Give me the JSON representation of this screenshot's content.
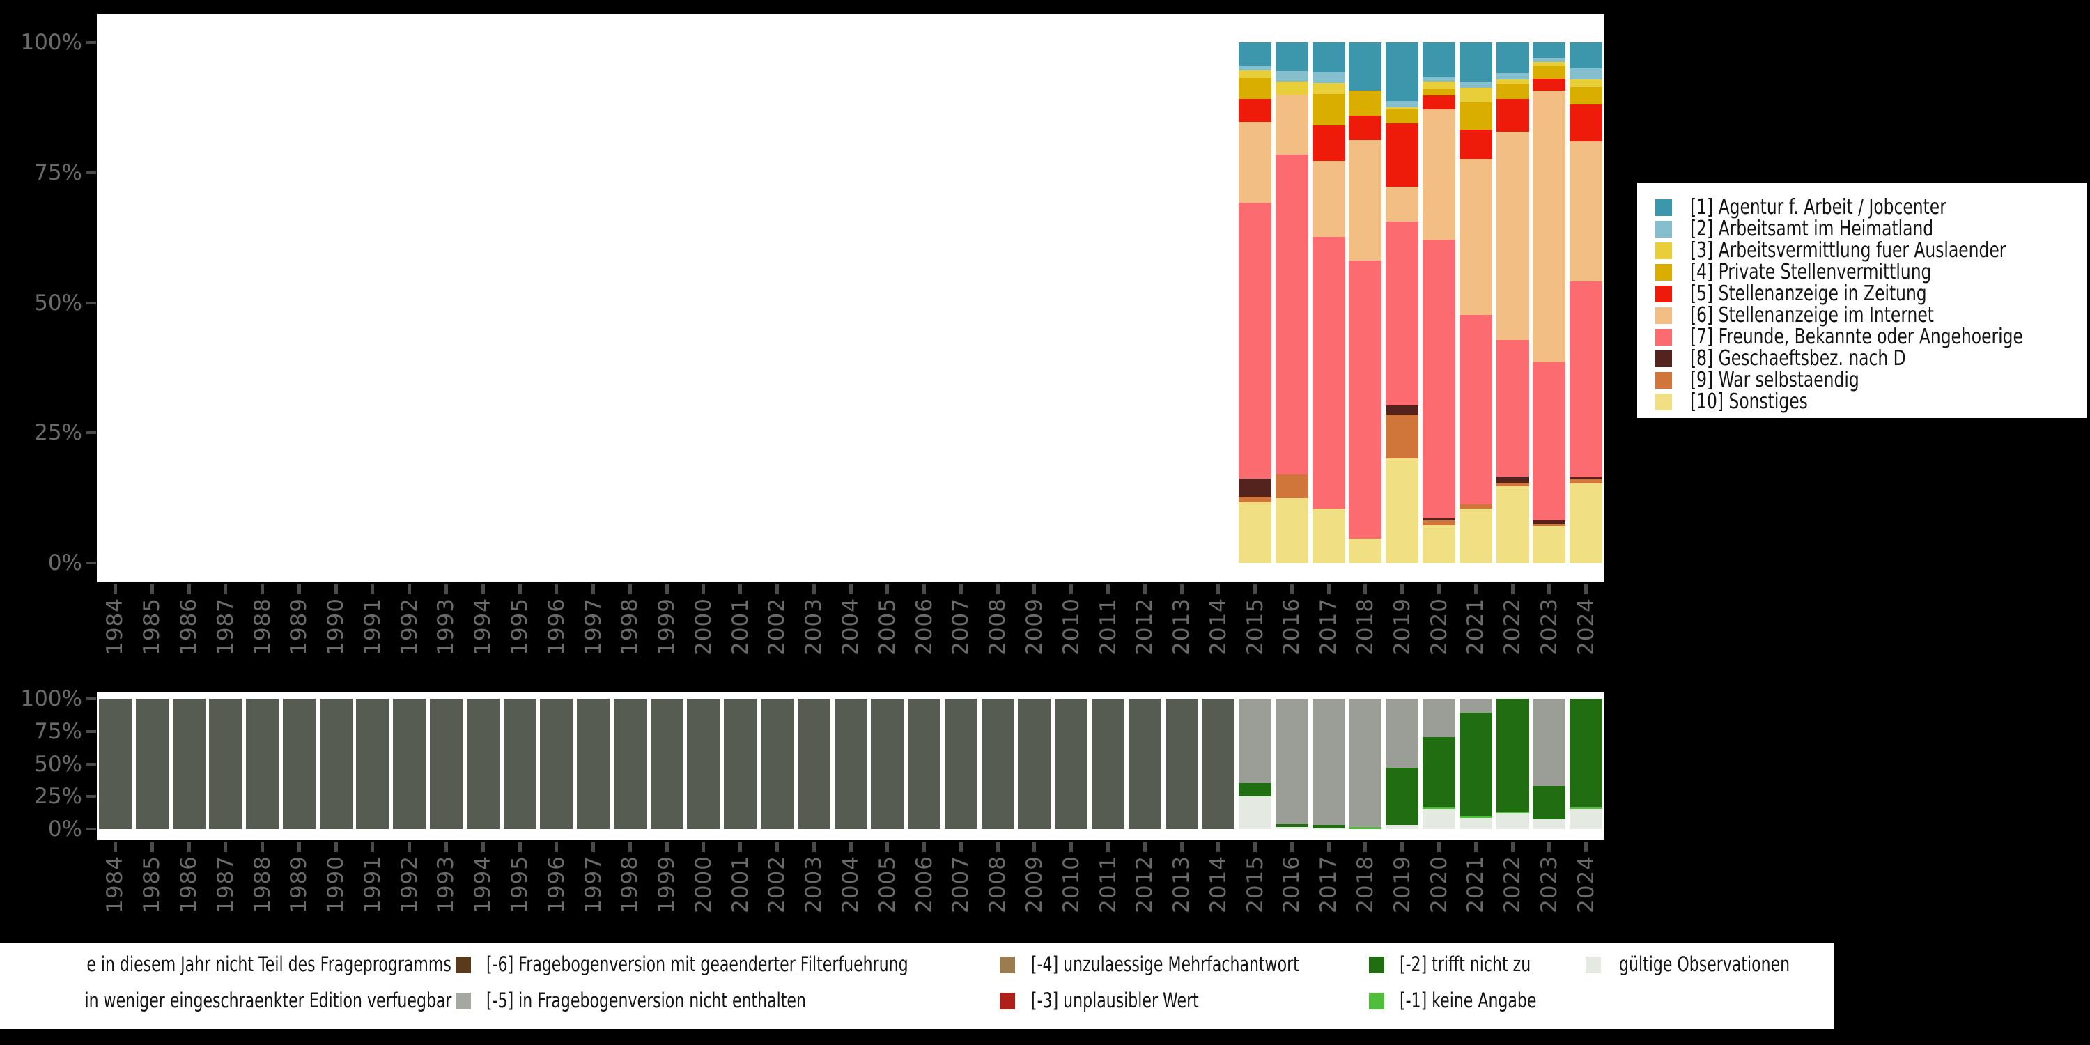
{
  "page": {
    "background_color": "#000000",
    "plot_background_color": "#ffffff",
    "axis_text_color": "#6a6a6a",
    "tick_color": "#4a4a4a"
  },
  "chart_data": [
    {
      "id": "answer-distribution",
      "type": "bar",
      "stacked": true,
      "unit": "percent",
      "ylim": [
        0,
        100
      ],
      "y_tick_labels": [
        "100%",
        "75%",
        "50%",
        "25%",
        "0%"
      ],
      "categories": [
        "1984",
        "1985",
        "1986",
        "1987",
        "1988",
        "1989",
        "1990",
        "1991",
        "1992",
        "1993",
        "1994",
        "1995",
        "1996",
        "1997",
        "1998",
        "1999",
        "2000",
        "2001",
        "2002",
        "2003",
        "2004",
        "2005",
        "2006",
        "2007",
        "2008",
        "2009",
        "2010",
        "2011",
        "2012",
        "2013",
        "2014",
        "2015",
        "2016",
        "2017",
        "2018",
        "2019",
        "2020",
        "2021",
        "2022",
        "2023",
        "2024"
      ],
      "stack_order": "top-to-bottom",
      "legend_position": "right",
      "series": [
        {
          "code": "1",
          "name": "[1] Agentur f. Arbeit / Jobcenter",
          "color": "#3C97AC",
          "values": {
            "2015": 4.5,
            "2016": 5.5,
            "2017": 5.7,
            "2018": 9.3,
            "2019": 11.3,
            "2020": 6.7,
            "2021": 7.5,
            "2022": 5.9,
            "2023": 2.9,
            "2024": 4.9
          }
        },
        {
          "code": "2",
          "name": "[2] Arbeitsamt im Heimatland",
          "color": "#85BECD",
          "values": {
            "2015": 0.8,
            "2016": 2.0,
            "2017": 2.1,
            "2019": 1.1,
            "2020": 0.8,
            "2021": 1.2,
            "2022": 1.2,
            "2023": 0.9,
            "2024": 2.2
          }
        },
        {
          "code": "3",
          "name": "[3] Arbeitsvermittlung fuer Auslaender",
          "color": "#E8CF3A",
          "values": {
            "2015": 1.5,
            "2016": 2.5,
            "2017": 2.1,
            "2019": 0.4,
            "2020": 1.5,
            "2021": 2.8,
            "2022": 0.8,
            "2023": 0.7,
            "2024": 1.5
          }
        },
        {
          "code": "4",
          "name": "[4] Private Stellenvermittlung",
          "color": "#D9AE00",
          "values": {
            "2015": 4.0,
            "2017": 6.0,
            "2018": 4.7,
            "2019": 2.7,
            "2020": 1.2,
            "2021": 5.2,
            "2022": 3.0,
            "2023": 2.4,
            "2024": 3.3
          }
        },
        {
          "code": "5",
          "name": "[5] Stellenanzeige in Zeitung",
          "color": "#EE1B0B",
          "values": {
            "2015": 4.5,
            "2017": 6.8,
            "2018": 4.7,
            "2019": 12.2,
            "2020": 2.7,
            "2021": 5.6,
            "2022": 6.2,
            "2023": 2.4,
            "2024": 7.1
          }
        },
        {
          "code": "6",
          "name": "[6] Stellenanzeige im Internet",
          "color": "#F2BE84",
          "values": {
            "2015": 15.5,
            "2016": 11.5,
            "2017": 14.6,
            "2018": 23.2,
            "2019": 6.7,
            "2020": 25.0,
            "2021": 30.0,
            "2022": 40.0,
            "2023": 52.2,
            "2024": 26.9
          }
        },
        {
          "code": "7",
          "name": "[7] Freunde, Bekannte oder Angehoerige",
          "color": "#FB6B6F",
          "values": {
            "2015": 53.0,
            "2016": 61.5,
            "2017": 52.3,
            "2018": 53.4,
            "2019": 35.3,
            "2020": 53.5,
            "2021": 36.4,
            "2022": 26.3,
            "2023": 30.3,
            "2024": 37.6
          }
        },
        {
          "code": "8",
          "name": "[8] Geschaeftsbez. nach D",
          "color": "#54231D",
          "values": {
            "2015": 3.5,
            "2019": 1.8,
            "2020": 0.5,
            "2022": 1.2,
            "2023": 0.7,
            "2024": 0.5
          }
        },
        {
          "code": "9",
          "name": "[9] War selbstaendig",
          "color": "#D0763B",
          "values": {
            "2015": 1.0,
            "2016": 4.5,
            "2019": 8.4,
            "2020": 0.9,
            "2021": 0.8,
            "2022": 0.7,
            "2023": 0.4,
            "2024": 0.7
          }
        },
        {
          "code": "10",
          "name": "[10] Sonstiges",
          "color": "#F0E083",
          "values": {
            "2015": 11.7,
            "2016": 12.5,
            "2017": 10.4,
            "2018": 4.7,
            "2019": 20.1,
            "2020": 7.2,
            "2021": 10.5,
            "2022": 14.7,
            "2023": 7.1,
            "2024": 15.3
          }
        }
      ]
    },
    {
      "id": "missings",
      "type": "bar",
      "stacked": true,
      "unit": "percent",
      "ylim": [
        0,
        100
      ],
      "y_tick_labels": [
        "100%",
        "75%",
        "50%",
        "25%",
        "0%"
      ],
      "categories": [
        "1984",
        "1985",
        "1986",
        "1987",
        "1988",
        "1989",
        "1990",
        "1991",
        "1992",
        "1993",
        "1994",
        "1995",
        "1996",
        "1997",
        "1998",
        "1999",
        "2000",
        "2001",
        "2002",
        "2003",
        "2004",
        "2005",
        "2006",
        "2007",
        "2008",
        "2009",
        "2010",
        "2011",
        "2012",
        "2013",
        "2014",
        "2015",
        "2016",
        "2017",
        "2018",
        "2019",
        "2020",
        "2021",
        "2022",
        "2023",
        "2024"
      ],
      "stack_order": "top-to-bottom",
      "series": [
        {
          "code": "-8",
          "legend_label": "e in diesem Jahr nicht Teil des Frageprogramms",
          "color": "#575C52",
          "values": {
            "1984": 100,
            "1985": 100,
            "1986": 100,
            "1987": 100,
            "1988": 100,
            "1989": 100,
            "1990": 100,
            "1991": 100,
            "1992": 100,
            "1993": 100,
            "1994": 100,
            "1995": 100,
            "1996": 100,
            "1997": 100,
            "1998": 100,
            "1999": 100,
            "2000": 100,
            "2001": 100,
            "2002": 100,
            "2003": 100,
            "2004": 100,
            "2005": 100,
            "2006": 100,
            "2007": 100,
            "2008": 100,
            "2009": 100,
            "2010": 100,
            "2011": 100,
            "2012": 100,
            "2013": 100,
            "2014": 100
          }
        },
        {
          "code": "-5",
          "legend_label": "[-5] in Fragebogenversion nicht enthalten",
          "color": "#9B9E96",
          "values": {
            "2015": 64.5,
            "2016": 96.0,
            "2017": 97.0,
            "2018": 98.5,
            "2019": 53.0,
            "2020": 29.5,
            "2021": 10.5,
            "2023": 67.0
          }
        },
        {
          "code": "-2",
          "legend_label": "[-2] trifft nicht zu",
          "color": "#216E12",
          "values": {
            "2015": 10.5,
            "2016": 2.5,
            "2017": 2.5,
            "2019": 44.0,
            "2020": 53.5,
            "2021": 80.0,
            "2022": 86.5,
            "2023": 25.5,
            "2024": 83.5
          }
        },
        {
          "code": "-1",
          "legend_label": "[-1] keine Angabe",
          "color": "#4FBE3B",
          "values": {
            "2018": 1.5,
            "2020": 1.5,
            "2021": 1.0,
            "2022": 1.0,
            "2024": 1.0
          }
        },
        {
          "code": "valid",
          "legend_label": "gültige Observationen",
          "color": "#E4E9E2",
          "values": {
            "2015": 25.0,
            "2016": 1.5,
            "2017": 0.5,
            "2019": 3.0,
            "2020": 15.5,
            "2021": 8.5,
            "2022": 12.5,
            "2023": 7.5,
            "2024": 15.5
          }
        }
      ]
    }
  ],
  "top_legend": {
    "items": [
      {
        "label": "[1] Agentur f. Arbeit / Jobcenter",
        "color": "#3C97AC"
      },
      {
        "label": "[2] Arbeitsamt im Heimatland",
        "color": "#85BECD"
      },
      {
        "label": "[3] Arbeitsvermittlung fuer Auslaender",
        "color": "#E8CF3A"
      },
      {
        "label": "[4] Private Stellenvermittlung",
        "color": "#D9AE00"
      },
      {
        "label": "[5] Stellenanzeige in Zeitung",
        "color": "#EE1B0B"
      },
      {
        "label": "[6] Stellenanzeige im Internet",
        "color": "#F2BE84"
      },
      {
        "label": "[7] Freunde, Bekannte oder Angehoerige",
        "color": "#FB6B6F"
      },
      {
        "label": "[8] Geschaeftsbez. nach D",
        "color": "#54231D"
      },
      {
        "label": "[9] War selbstaendig",
        "color": "#D0763B"
      },
      {
        "label": "[10] Sonstiges",
        "color": "#F0E083"
      }
    ]
  },
  "bottom_legend": {
    "columns": [
      [
        {
          "label": "e in diesem Jahr nicht Teil des Frageprogramms",
          "color": null
        },
        {
          "label": "in weniger eingeschraenkter Edition verfuegbar",
          "color": null
        }
      ],
      [
        {
          "label": "[-6] Fragebogenversion mit geaenderter Filterfuehrung",
          "color": "#5A3A1C"
        },
        {
          "label": "[-5] in Fragebogenversion nicht enthalten",
          "color": "#A5A8A0"
        }
      ],
      [
        {
          "label": "[-4] unzulaessige Mehrfachantwort",
          "color": "#9C7B4E"
        },
        {
          "label": "[-3] unplausibler Wert",
          "color": "#AF1E18"
        }
      ],
      [
        {
          "label": "[-2] trifft nicht zu",
          "color": "#216E12"
        },
        {
          "label": "[-1] keine Angabe",
          "color": "#4FBE3B"
        }
      ],
      [
        {
          "label": "gültige Observationen",
          "color": "#E4E9E2"
        }
      ]
    ]
  }
}
